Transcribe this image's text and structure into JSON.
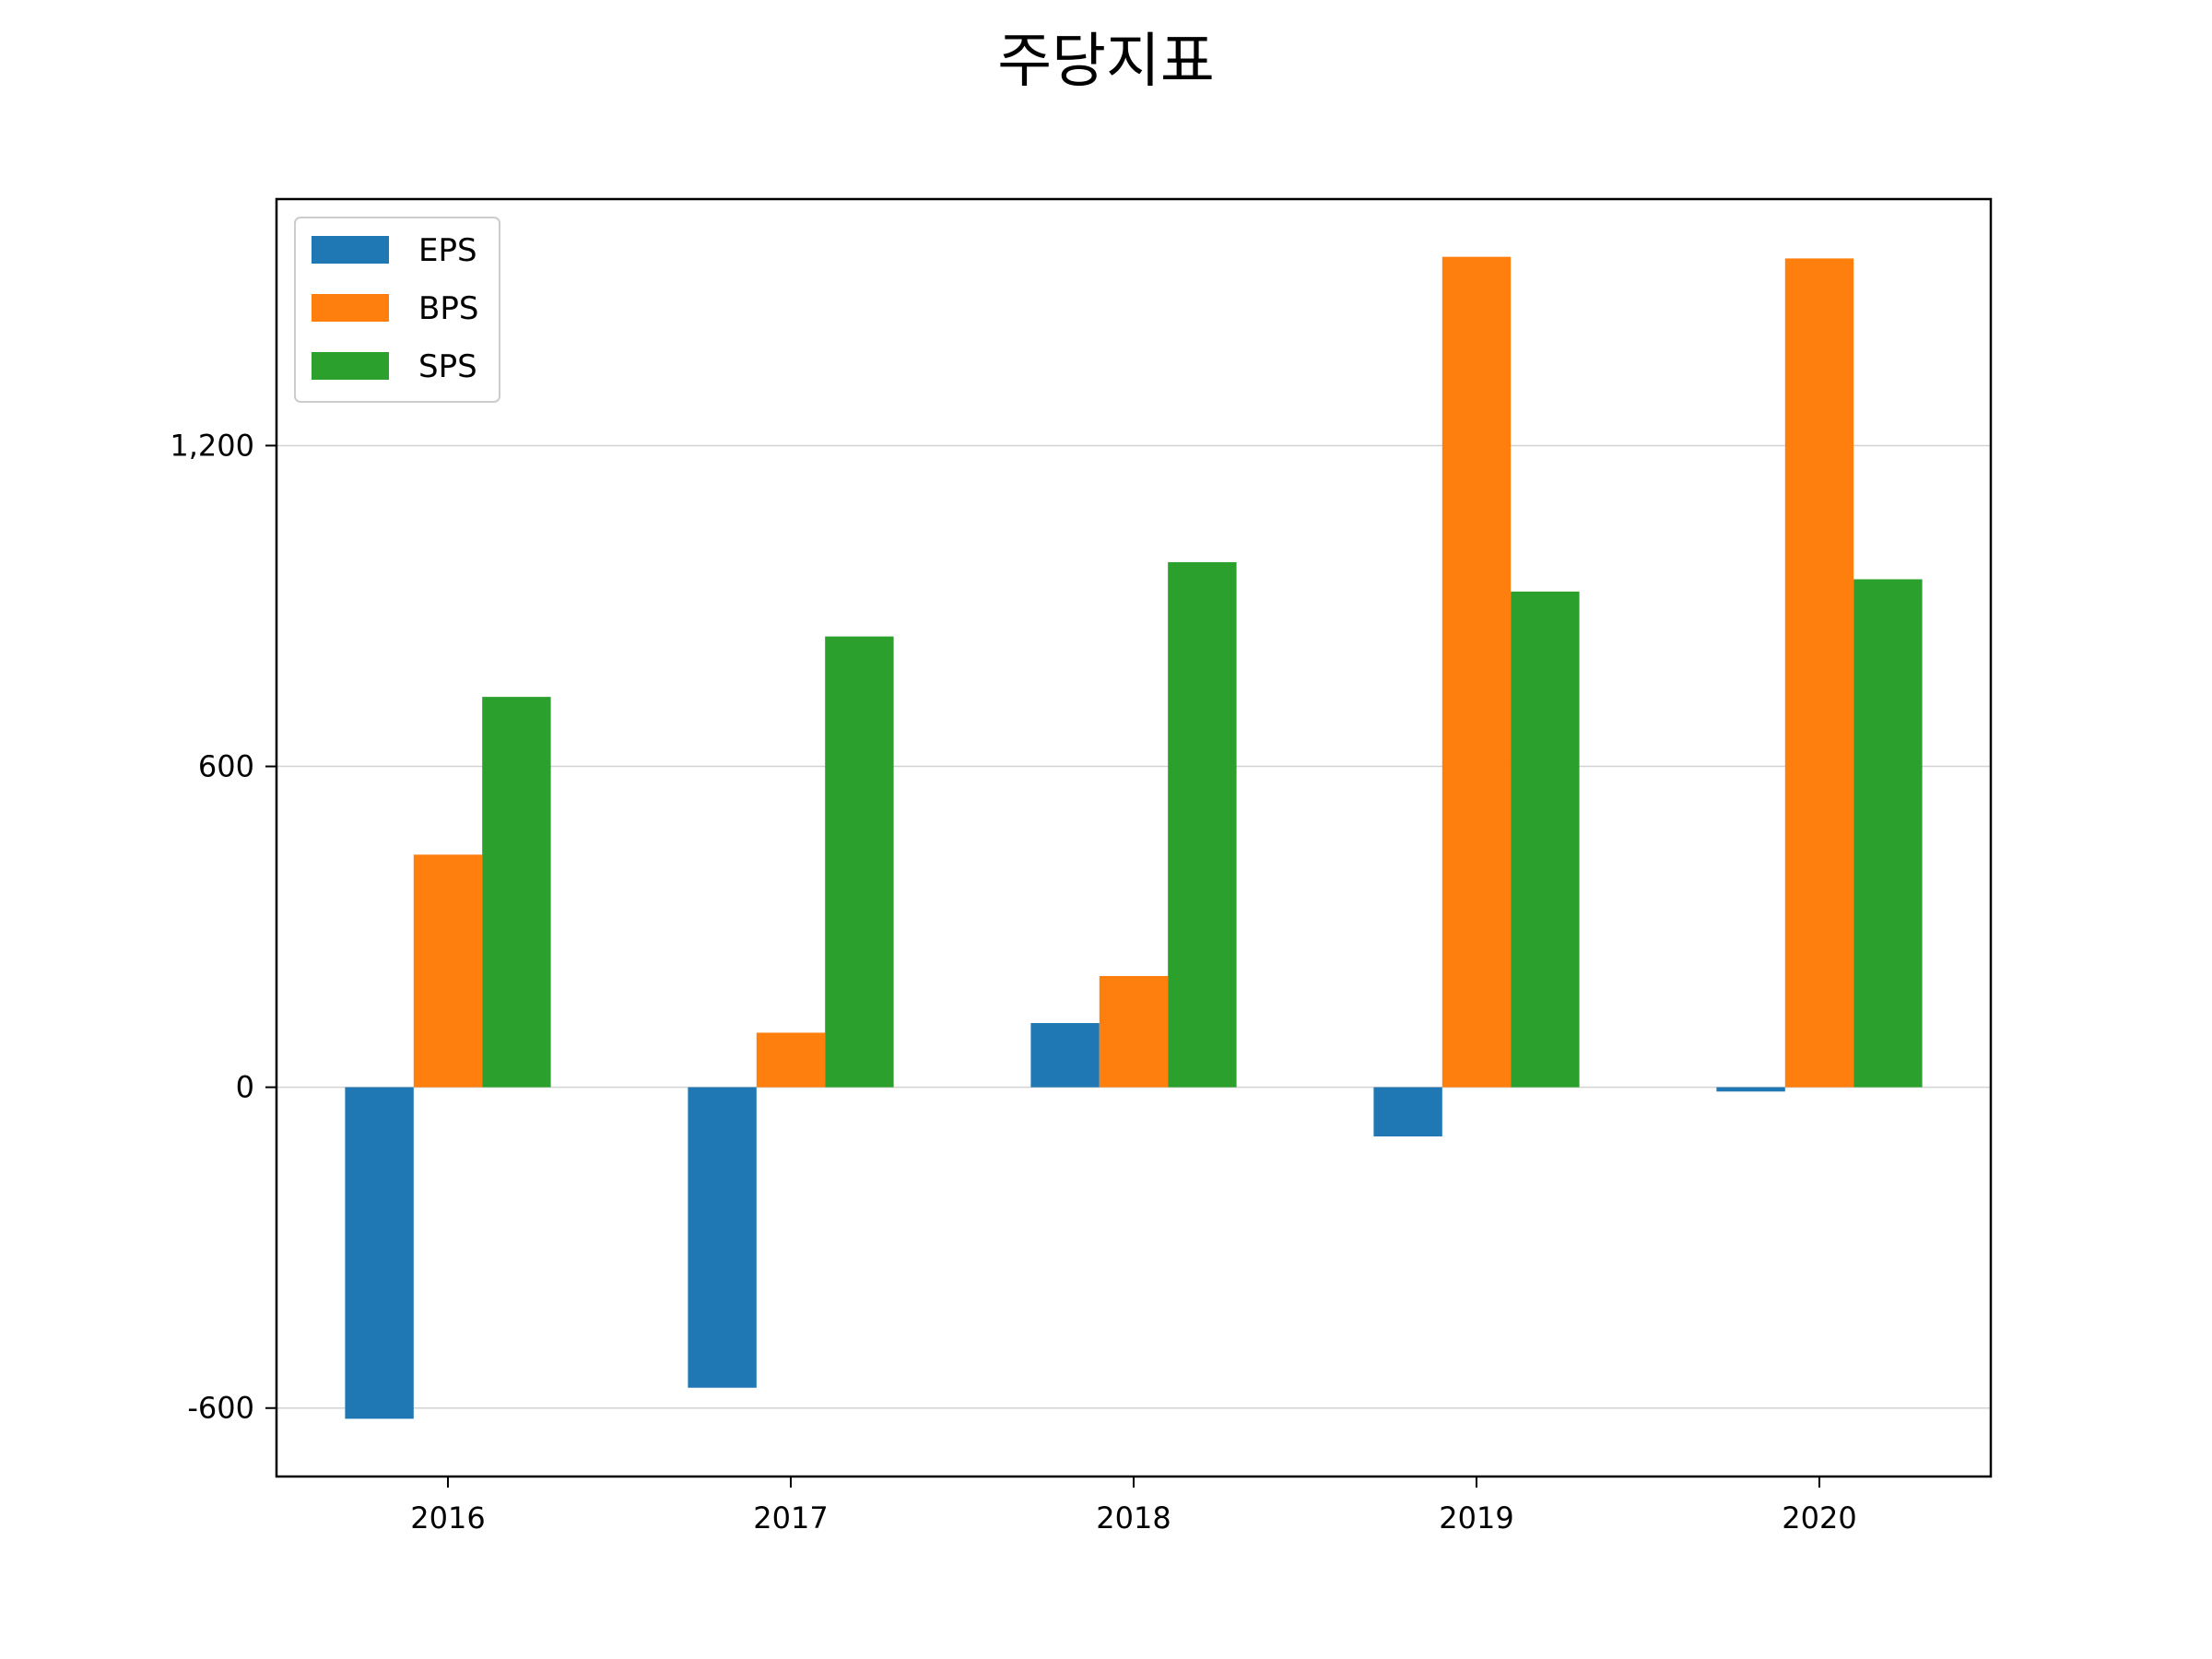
{
  "chart_data": {
    "type": "bar",
    "title": "주당지표",
    "xlabel": "",
    "ylabel": "",
    "categories": [
      "2016",
      "2017",
      "2018",
      "2019",
      "2020"
    ],
    "series": [
      {
        "name": "EPS",
        "color": "#1f77b4",
        "values": [
          -620,
          -562,
          120,
          -92,
          -8
        ]
      },
      {
        "name": "BPS",
        "color": "#ff7f0e",
        "values": [
          435,
          102,
          208,
          1553,
          1550
        ]
      },
      {
        "name": "SPS",
        "color": "#2ca02c",
        "values": [
          730,
          843,
          982,
          927,
          950
        ]
      }
    ],
    "ylim": [
      -728,
      1661
    ],
    "yticks": [
      -600,
      0,
      600,
      1200
    ],
    "ytick_labels": [
      "-600",
      "0",
      "600",
      "1,200"
    ],
    "grid": "y",
    "legend_position": "upper left"
  }
}
